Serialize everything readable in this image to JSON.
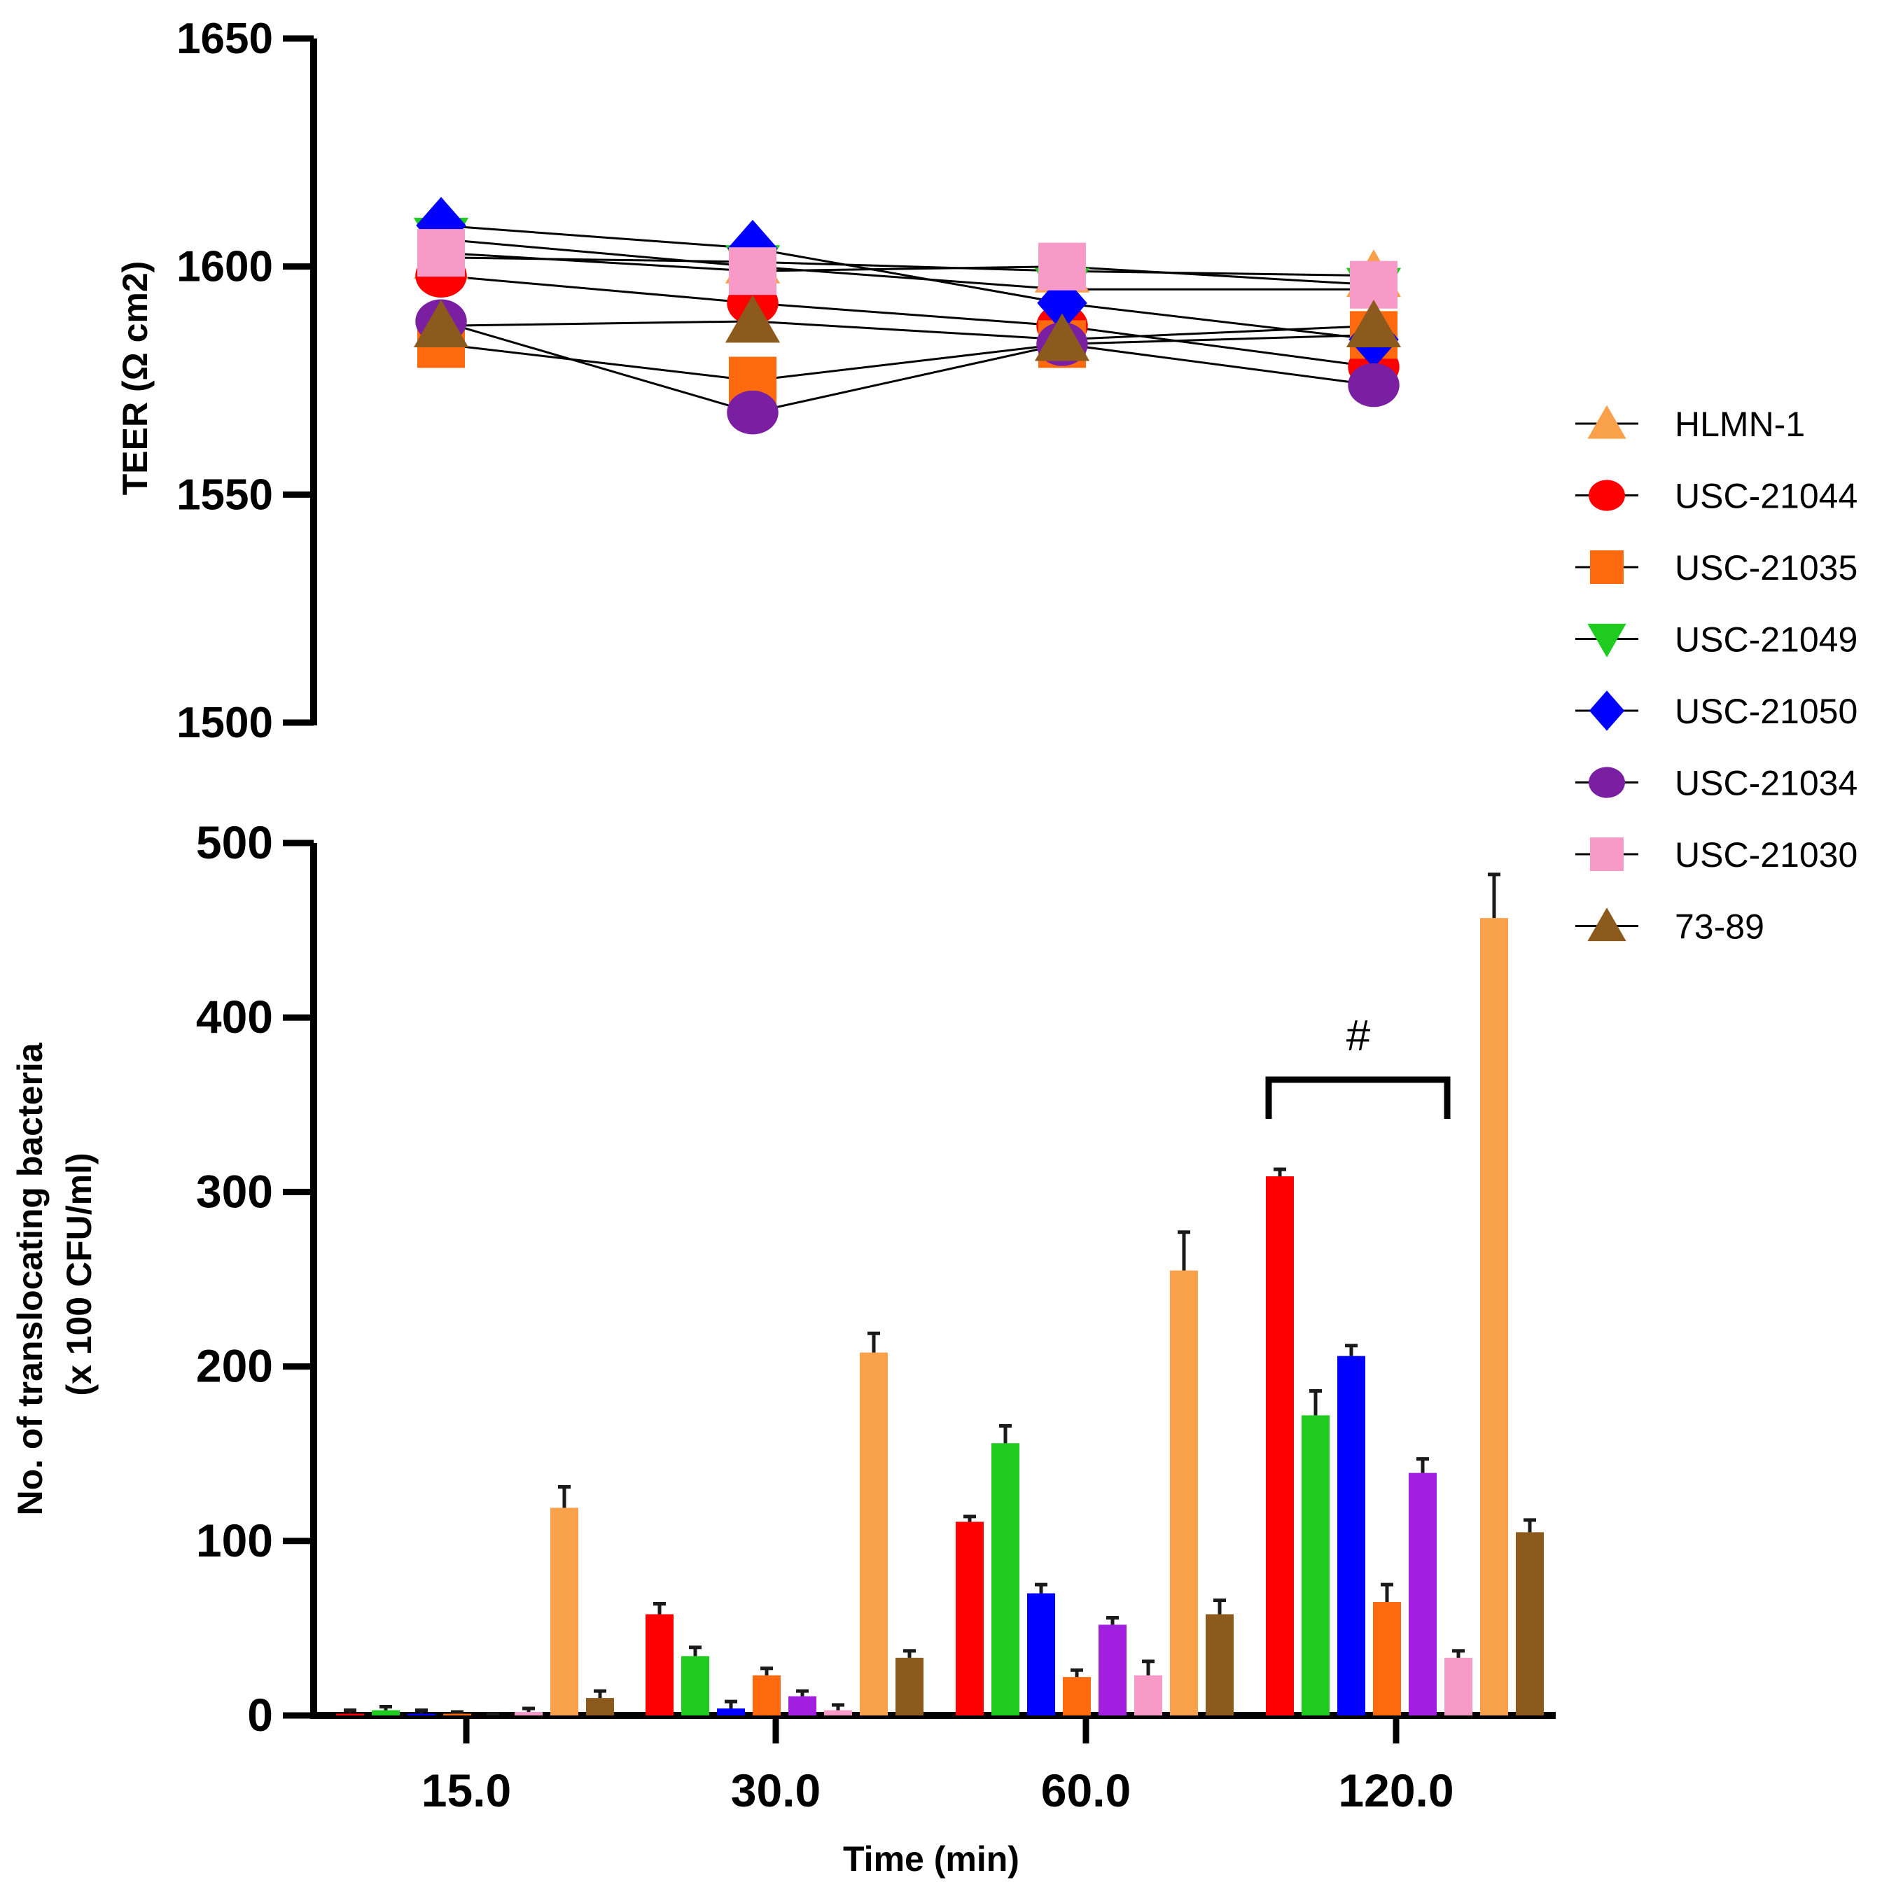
{
  "chart_data": [
    {
      "type": "line",
      "ylabel": "TEER (Ω cm2)",
      "ylim": [
        1500,
        1650
      ],
      "y_ticks": [
        "1650",
        "1600",
        "1550",
        "1500"
      ],
      "x": [
        15,
        30,
        60,
        120
      ],
      "series": [
        {
          "name": "HLMN-1",
          "color": "#f9a04b",
          "marker": "triangle-up",
          "values": [
            1602,
            1601,
            1599,
            1598
          ]
        },
        {
          "name": "USC-21044",
          "color": "#ff0000",
          "marker": "circle",
          "values": [
            1598,
            1592,
            1587,
            1578
          ]
        },
        {
          "name": "USC-21035",
          "color": "#ff6a0f",
          "marker": "square",
          "values": [
            1583,
            1575,
            1583,
            1585
          ]
        },
        {
          "name": "USC-21049",
          "color": "#1fcb1f",
          "marker": "triangle-down",
          "values": [
            1606,
            1600,
            1595,
            1595
          ]
        },
        {
          "name": "USC-21050",
          "color": "#0000ff",
          "marker": "diamond",
          "values": [
            1609,
            1604,
            1592,
            1584
          ]
        },
        {
          "name": "USC-21034",
          "color": "#7a1fa2",
          "marker": "circle",
          "values": [
            1588,
            1568,
            1583,
            1574
          ]
        },
        {
          "name": "USC-21030",
          "color": "#f79ac8",
          "marker": "square",
          "values": [
            1603,
            1599,
            1600,
            1596
          ]
        },
        {
          "name": "73-89",
          "color": "#8c5a1d",
          "marker": "triangle-up",
          "values": [
            1587,
            1588,
            1584,
            1587
          ]
        }
      ]
    },
    {
      "type": "bar",
      "categories": [
        "15.0",
        "30.0",
        "60.0",
        "120.0"
      ],
      "xlabel": "Time (min)",
      "ylabel_lines": [
        "No. of translocating bacteria",
        "(x 100 CFU/ml)"
      ],
      "ylim": [
        0,
        500
      ],
      "y_ticks": [
        "500",
        "400",
        "300",
        "200",
        "100",
        "0"
      ],
      "annotation": "#",
      "series": [
        {
          "name": "USC-21044",
          "color": "#ff0000",
          "values": [
            1,
            58,
            111,
            309
          ],
          "errors": [
            2,
            6,
            3,
            4
          ]
        },
        {
          "name": "USC-21049",
          "color": "#1fcb1f",
          "values": [
            3,
            34,
            156,
            172
          ],
          "errors": [
            2,
            5,
            10,
            14
          ]
        },
        {
          "name": "USC-21050",
          "color": "#0000ff",
          "values": [
            1,
            4,
            70,
            206
          ],
          "errors": [
            2,
            4,
            5,
            6
          ]
        },
        {
          "name": "USC-21035",
          "color": "#ff6a0f",
          "values": [
            1,
            23,
            22,
            65
          ],
          "errors": [
            1,
            4,
            4,
            10
          ]
        },
        {
          "name": "USC-21034",
          "color": "#a21fe0",
          "values": [
            0,
            11,
            52,
            139
          ],
          "errors": [
            1,
            3,
            4,
            8
          ]
        },
        {
          "name": "USC-21030",
          "color": "#f79ac8",
          "values": [
            2,
            3,
            23,
            33
          ],
          "errors": [
            2,
            3,
            8,
            4
          ]
        },
        {
          "name": "HLMN-1",
          "color": "#f9a04b",
          "values": [
            119,
            208,
            255,
            457
          ],
          "errors": [
            12,
            11,
            22,
            25
          ]
        },
        {
          "name": "73-89",
          "color": "#8c5a1d",
          "values": [
            10,
            33,
            58,
            105
          ],
          "errors": [
            4,
            4,
            8,
            7
          ]
        }
      ]
    }
  ],
  "legend": [
    {
      "label": "HLMN-1",
      "color": "#f9a04b",
      "marker": "triangle-up"
    },
    {
      "label": "USC-21044",
      "color": "#ff0000",
      "marker": "circle"
    },
    {
      "label": "USC-21035",
      "color": "#ff6a0f",
      "marker": "square"
    },
    {
      "label": "USC-21049",
      "color": "#1fcb1f",
      "marker": "triangle-down"
    },
    {
      "label": "USC-21050",
      "color": "#0000ff",
      "marker": "diamond"
    },
    {
      "label": "USC-21034",
      "color": "#7a1fa2",
      "marker": "circle"
    },
    {
      "label": "USC-21030",
      "color": "#f79ac8",
      "marker": "square"
    },
    {
      "label": "73-89",
      "color": "#8c5a1d",
      "marker": "triangle-up"
    }
  ]
}
